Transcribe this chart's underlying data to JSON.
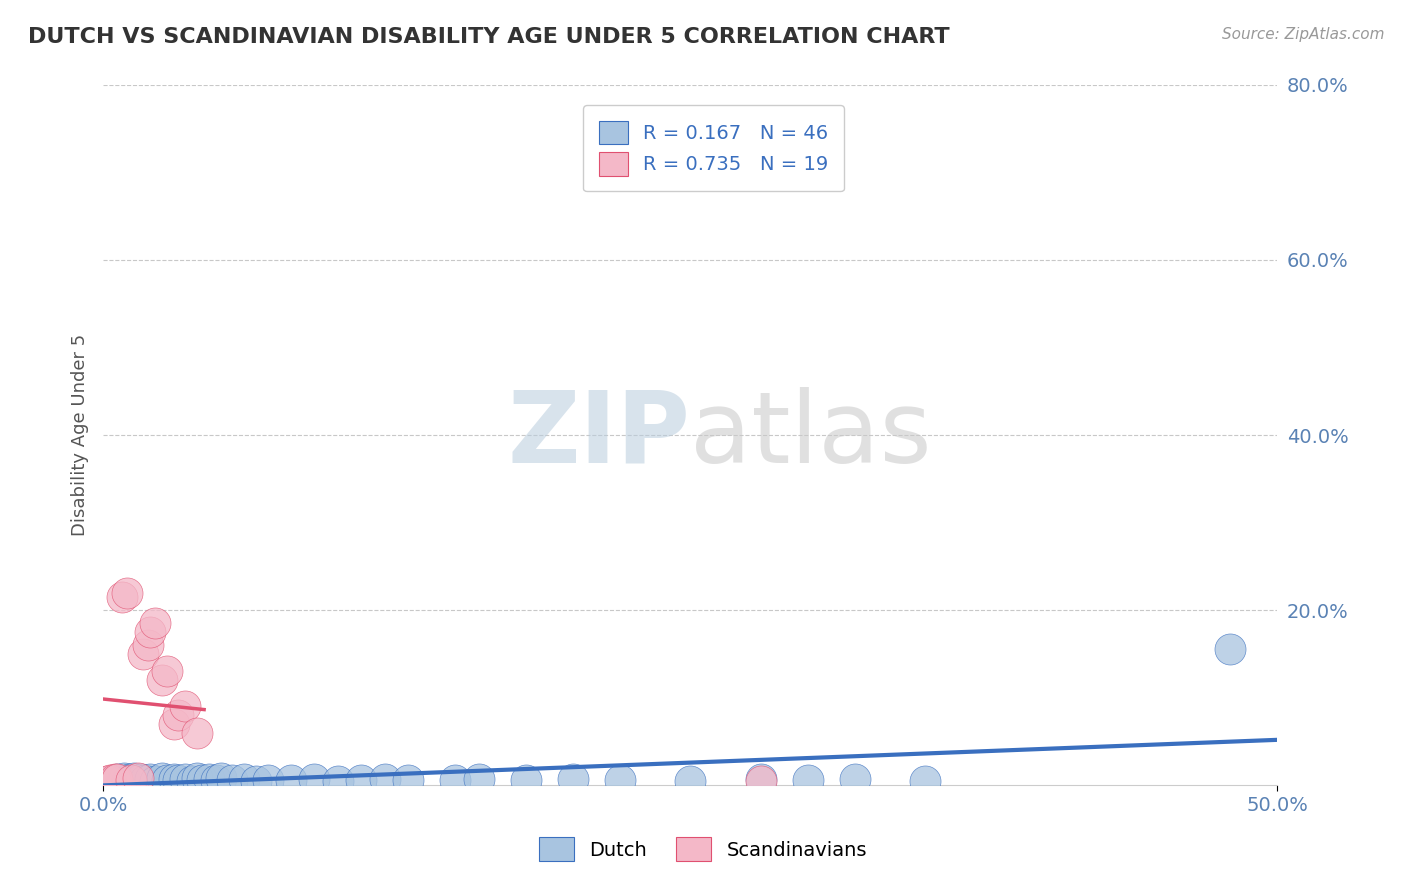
{
  "title": "DUTCH VS SCANDINAVIAN DISABILITY AGE UNDER 5 CORRELATION CHART",
  "source": "Source: ZipAtlas.com",
  "ylabel": "Disability Age Under 5",
  "xlim": [
    0.0,
    0.5
  ],
  "ylim": [
    0.0,
    0.8
  ],
  "dutch_R": 0.167,
  "dutch_N": 46,
  "scandi_R": 0.735,
  "scandi_N": 19,
  "dutch_color": "#a8c4e0",
  "dutch_line_color": "#3a6fbf",
  "scandi_color": "#f4b8c8",
  "scandi_line_color": "#e05070",
  "background_color": "#ffffff",
  "grid_color": "#c8c8c8",
  "dutch_x": [
    0.003,
    0.005,
    0.006,
    0.008,
    0.009,
    0.01,
    0.011,
    0.012,
    0.013,
    0.015,
    0.016,
    0.018,
    0.02,
    0.022,
    0.025,
    0.027,
    0.03,
    0.032,
    0.035,
    0.038,
    0.04,
    0.042,
    0.045,
    0.048,
    0.05,
    0.055,
    0.06,
    0.065,
    0.07,
    0.08,
    0.09,
    0.1,
    0.11,
    0.12,
    0.13,
    0.15,
    0.16,
    0.18,
    0.2,
    0.22,
    0.25,
    0.28,
    0.3,
    0.32,
    0.35,
    0.48
  ],
  "dutch_y": [
    0.005,
    0.006,
    0.007,
    0.005,
    0.008,
    0.006,
    0.007,
    0.005,
    0.008,
    0.006,
    0.007,
    0.006,
    0.007,
    0.005,
    0.008,
    0.006,
    0.007,
    0.006,
    0.007,
    0.005,
    0.008,
    0.006,
    0.007,
    0.006,
    0.008,
    0.006,
    0.007,
    0.005,
    0.006,
    0.006,
    0.007,
    0.005,
    0.006,
    0.007,
    0.006,
    0.006,
    0.007,
    0.006,
    0.007,
    0.006,
    0.005,
    0.007,
    0.006,
    0.007,
    0.005,
    0.155
  ],
  "scandi_x": [
    0.002,
    0.003,
    0.005,
    0.006,
    0.008,
    0.01,
    0.012,
    0.015,
    0.017,
    0.019,
    0.02,
    0.022,
    0.025,
    0.027,
    0.03,
    0.032,
    0.035,
    0.04,
    0.28
  ],
  "scandi_y": [
    0.005,
    0.006,
    0.007,
    0.007,
    0.215,
    0.22,
    0.006,
    0.008,
    0.15,
    0.16,
    0.175,
    0.185,
    0.12,
    0.13,
    0.07,
    0.08,
    0.09,
    0.06,
    0.005
  ]
}
